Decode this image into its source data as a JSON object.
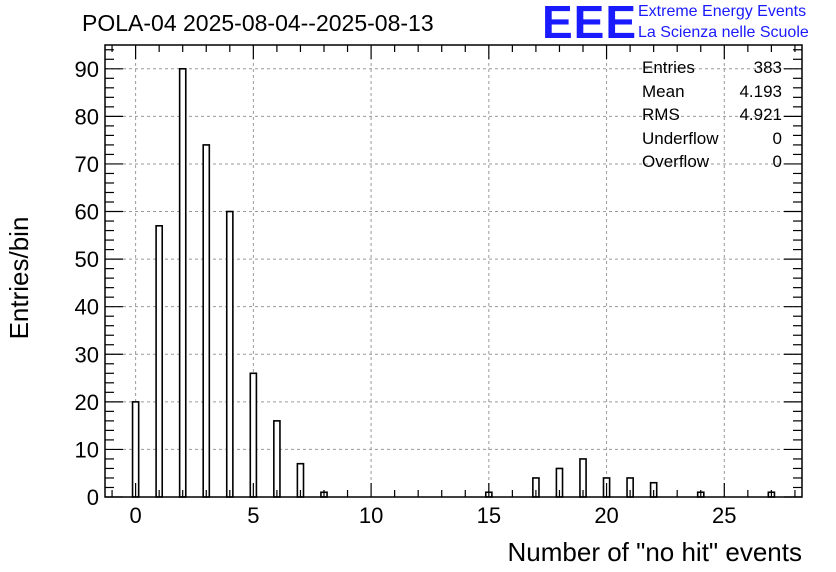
{
  "title": "POLA-04 2025-08-04--2025-08-13",
  "logo": {
    "mark": "EEE",
    "line1": "Extreme Energy Events",
    "line2": "La Scienza nelle Scuole",
    "color": "#1a1aff"
  },
  "stats": [
    {
      "label": "Entries",
      "value": "383"
    },
    {
      "label": "Mean",
      "value": "4.193"
    },
    {
      "label": "RMS",
      "value": "4.921"
    },
    {
      "label": "Underflow",
      "value": "0"
    },
    {
      "label": "Overflow",
      "value": "0"
    }
  ],
  "chart_data": {
    "type": "bar",
    "title": "POLA-04 2025-08-04--2025-08-13",
    "xlabel": "Number of \"no hit\" events",
    "ylabel": "Entries/bin",
    "xlim": [
      -1.3,
      28.3
    ],
    "ylim": [
      0,
      95
    ],
    "grid": true,
    "x_ticks": [
      0,
      5,
      10,
      15,
      20,
      25
    ],
    "y_ticks": [
      0,
      10,
      20,
      30,
      40,
      50,
      60,
      70,
      80,
      90
    ],
    "x": [
      0,
      1,
      2,
      3,
      4,
      5,
      6,
      7,
      8,
      15,
      17,
      18,
      19,
      20,
      21,
      22,
      24,
      27
    ],
    "values": [
      20,
      57,
      90,
      74,
      60,
      26,
      16,
      7,
      1,
      1,
      4,
      6,
      8,
      4,
      4,
      3,
      1,
      1
    ],
    "bar_color": "#ffffff",
    "bar_edge_color": "#000000"
  }
}
